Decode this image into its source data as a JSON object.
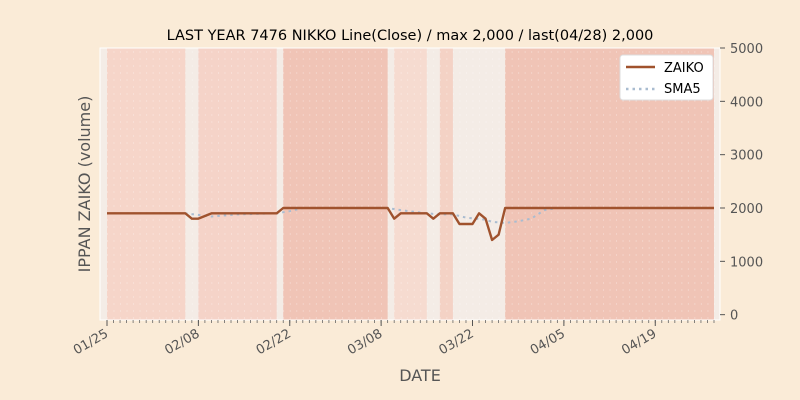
{
  "chart_data": {
    "type": "line",
    "title": "LAST YEAR 7476 NIKKO Line(Close) / max 2,000 / last(04/28) 2,000",
    "xlabel": "DATE",
    "ylabel": "IPPAN ZAIKO (volume)",
    "x_tick_labels": [
      "01/25",
      "02/08",
      "02/22",
      "03/08",
      "03/22",
      "04/05",
      "04/19"
    ],
    "x_tick_dates": [
      "01/25",
      "02/08",
      "02/22",
      "03/08",
      "03/22",
      "04/05",
      "04/19"
    ],
    "y_ticks": [
      0,
      1000,
      2000,
      3000,
      4000,
      5000
    ],
    "y_tick_labels": [
      "0",
      "1000",
      "2000",
      "3000",
      "4000",
      "5000"
    ],
    "ylim": [
      -100,
      5000
    ],
    "y_axis_side": "right",
    "legend_position": "top-right",
    "grid": false,
    "series": [
      {
        "name": "ZAIKO",
        "color": "#a0522d",
        "style": "solid",
        "points": [
          [
            "01/25",
            1900
          ],
          [
            "02/06",
            1900
          ],
          [
            "02/07",
            1800
          ],
          [
            "02/08",
            1800
          ],
          [
            "02/10",
            1900
          ],
          [
            "02/20",
            1900
          ],
          [
            "02/21",
            2000
          ],
          [
            "03/09",
            2000
          ],
          [
            "03/10",
            1800
          ],
          [
            "03/11",
            1900
          ],
          [
            "03/15",
            1900
          ],
          [
            "03/16",
            1800
          ],
          [
            "03/17",
            1900
          ],
          [
            "03/19",
            1900
          ],
          [
            "03/20",
            1700
          ],
          [
            "03/22",
            1700
          ],
          [
            "03/23",
            1900
          ],
          [
            "03/24",
            1800
          ],
          [
            "03/25",
            1400
          ],
          [
            "03/26",
            1500
          ],
          [
            "03/27",
            2000
          ],
          [
            "04/28",
            2000
          ]
        ]
      },
      {
        "name": "SMA5",
        "color": "#a9bcd0",
        "style": "dotted",
        "points": [
          [
            "01/25",
            1900
          ],
          [
            "02/06",
            1900
          ],
          [
            "02/08",
            1870
          ],
          [
            "02/10",
            1840
          ],
          [
            "02/14",
            1880
          ],
          [
            "02/20",
            1900
          ],
          [
            "02/22",
            1940
          ],
          [
            "02/24",
            2000
          ],
          [
            "03/09",
            2000
          ],
          [
            "03/11",
            1960
          ],
          [
            "03/15",
            1900
          ],
          [
            "03/17",
            1880
          ],
          [
            "03/19",
            1880
          ],
          [
            "03/21",
            1820
          ],
          [
            "03/24",
            1780
          ],
          [
            "03/25",
            1740
          ],
          [
            "03/27",
            1720
          ],
          [
            "03/29",
            1750
          ],
          [
            "03/31",
            1800
          ],
          [
            "04/02",
            1960
          ],
          [
            "04/04",
            2000
          ],
          [
            "04/28",
            2000
          ]
        ]
      }
    ],
    "shaded_bands": [
      {
        "start": "01/25",
        "end": "02/06",
        "color": "#f6d5c9"
      },
      {
        "start": "02/08",
        "end": "02/20",
        "color": "#f5d3c8"
      },
      {
        "start": "02/21",
        "end": "03/09",
        "color": "#f0c4b6"
      },
      {
        "start": "03/10",
        "end": "03/15",
        "color": "#f6dbd0"
      },
      {
        "start": "03/17",
        "end": "03/19",
        "color": "#f4d2c5"
      },
      {
        "start": "03/27",
        "end": "04/28",
        "color": "#f0c4b6"
      }
    ]
  }
}
